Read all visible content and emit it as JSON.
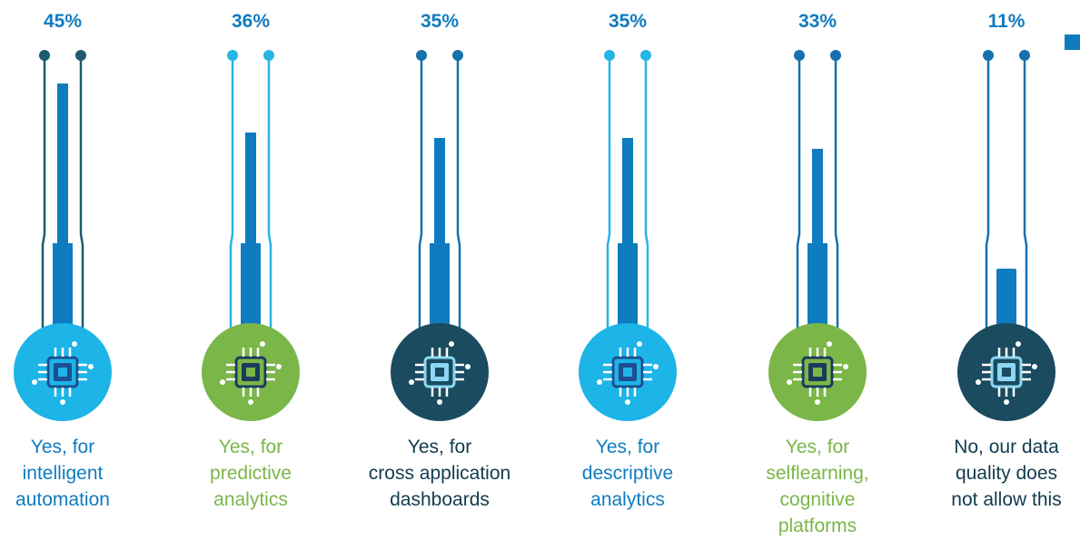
{
  "chart_data": {
    "type": "bar",
    "title": "",
    "categories": [
      "Yes, for intelligent automation",
      "Yes, for predictive analytics",
      "Yes, for cross application dashboards",
      "Yes, for descriptive analytics",
      "Yes, for selflearning, cognitive platforms",
      "No, our data quality does not allow this"
    ],
    "values": [
      45,
      36,
      35,
      35,
      33,
      11
    ],
    "value_labels": [
      "45%",
      "36%",
      "35%",
      "35%",
      "33%",
      "11%"
    ],
    "ylim": [
      0,
      50
    ],
    "xlabel": "",
    "ylabel": "",
    "legend": [
      {
        "name": "",
        "color": "#0f7cc0"
      }
    ],
    "grid": false
  },
  "items": [
    {
      "pct": "45%",
      "label_lines": [
        "Yes, for",
        "intelligent",
        "automation"
      ],
      "label_color": "#0f7cc0",
      "stem_color": "#1d5a70",
      "circle_color": "#1db4e8",
      "chip_color": "#1d4f91",
      "icon": "cpu-chip-icon"
    },
    {
      "pct": "36%",
      "label_lines": [
        "Yes, for",
        "predictive",
        "analytics"
      ],
      "label_color": "#7ab648",
      "stem_color": "#27b5e6",
      "circle_color": "#7ab648",
      "chip_color": "#1b3a5c",
      "icon": "cpu-chip-icon"
    },
    {
      "pct": "35%",
      "label_lines": [
        "Yes, for",
        "cross application",
        "dashboards"
      ],
      "label_color": "#123b4e",
      "stem_color": "#1670ad",
      "circle_color": "#1a4b5e",
      "chip_color": "#8fd6f5",
      "icon": "cpu-chip-icon"
    },
    {
      "pct": "35%",
      "label_lines": [
        "Yes, for",
        "descriptive",
        "analytics"
      ],
      "label_color": "#0f7cc0",
      "stem_color": "#27b5e6",
      "circle_color": "#1db4e8",
      "chip_color": "#1d4f91",
      "icon": "cpu-chip-icon"
    },
    {
      "pct": "33%",
      "label_lines": [
        "Yes, for",
        "selflearning,",
        "cognitive",
        "platforms"
      ],
      "label_color": "#7ab648",
      "stem_color": "#1670ad",
      "circle_color": "#7ab648",
      "chip_color": "#1b3a5c",
      "icon": "cpu-chip-icon"
    },
    {
      "pct": "11%",
      "label_lines": [
        "No, our data",
        "quality does",
        "not allow this"
      ],
      "label_color": "#123b4e",
      "stem_color": "#1670ad",
      "circle_color": "#1a4b5e",
      "chip_color": "#8fd6f5",
      "icon": "cpu-chip-icon"
    }
  ],
  "colors": {
    "bar": "#0f7cc0",
    "pct_text": "#0f7cc0",
    "legend": "#0f7cc0"
  }
}
